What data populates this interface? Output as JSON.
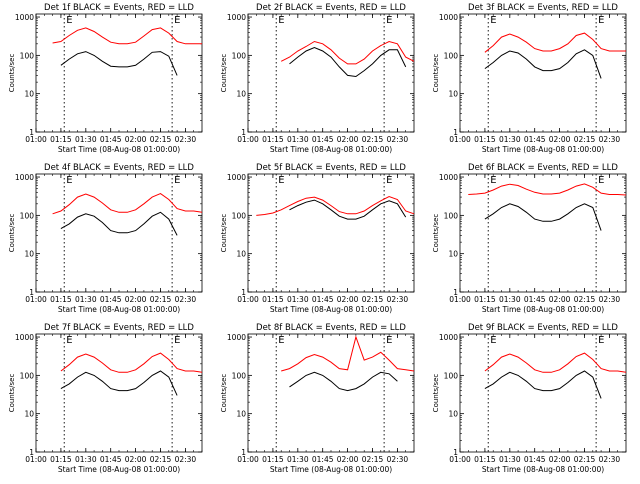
{
  "figure": {
    "xlabel": "Start Time (08-Aug-08 01:00:00)",
    "ylabel": "Counts/sec",
    "x_ticks": [
      "01:00",
      "01:15",
      "01:30",
      "01:45",
      "02:00",
      "02:15",
      "02:30"
    ],
    "y_ticks": [
      "1",
      "10",
      "100",
      "1000"
    ],
    "event_markers": [
      "E",
      "E"
    ],
    "colors": {
      "events": "#000000",
      "lld": "#ff0000",
      "axes": "#000000"
    }
  },
  "chart_data": [
    {
      "type": "line",
      "title": "Det 1f BLACK = Events, RED = LLD",
      "ylabel": "Counts/sec",
      "xlabel": "Start Time (08-Aug-08 01:00:00)",
      "x": [
        "01:00",
        "01:05",
        "01:10",
        "01:15",
        "01:20",
        "01:25",
        "01:30",
        "01:35",
        "01:40",
        "01:45",
        "01:50",
        "01:55",
        "02:00",
        "02:05",
        "02:10",
        "02:15",
        "02:20",
        "02:25",
        "02:30",
        "02:35",
        "02:40"
      ],
      "series": [
        {
          "name": "Events",
          "color": "#000000",
          "values": [
            null,
            null,
            null,
            55,
            80,
            110,
            125,
            100,
            70,
            52,
            50,
            50,
            55,
            80,
            120,
            125,
            95,
            30,
            null,
            null,
            null
          ]
        },
        {
          "name": "LLD",
          "color": "#ff0000",
          "values": [
            null,
            null,
            210,
            230,
            330,
            450,
            520,
            420,
            300,
            220,
            200,
            200,
            220,
            320,
            470,
            520,
            380,
            230,
            200,
            200,
            200
          ]
        }
      ],
      "xlim": [
        "01:00",
        "02:40"
      ],
      "ylim": [
        1,
        1200
      ],
      "yscale": "log",
      "vlines": [
        "01:17",
        "02:22"
      ]
    },
    {
      "type": "line",
      "title": "Det 2f BLACK = Events, RED = LLD",
      "ylabel": "Counts/sec",
      "xlabel": "Start Time (08-Aug-08 01:00:00)",
      "x": [
        "01:00",
        "01:05",
        "01:10",
        "01:15",
        "01:20",
        "01:25",
        "01:30",
        "01:35",
        "01:40",
        "01:45",
        "01:50",
        "01:55",
        "02:00",
        "02:05",
        "02:10",
        "02:15",
        "02:20",
        "02:25",
        "02:30",
        "02:35",
        "02:40"
      ],
      "series": [
        {
          "name": "Events",
          "color": "#000000",
          "values": [
            null,
            null,
            null,
            null,
            null,
            60,
            90,
            130,
            160,
            130,
            90,
            50,
            30,
            28,
            40,
            60,
            100,
            140,
            140,
            50,
            null
          ]
        },
        {
          "name": "LLD",
          "color": "#ff0000",
          "values": [
            null,
            null,
            null,
            null,
            70,
            90,
            130,
            170,
            230,
            200,
            140,
            85,
            60,
            60,
            80,
            130,
            180,
            230,
            200,
            90,
            70
          ]
        }
      ],
      "xlim": [
        "01:00",
        "02:40"
      ],
      "ylim": [
        1,
        1200
      ],
      "yscale": "log",
      "vlines": [
        "01:17",
        "02:22"
      ]
    },
    {
      "type": "line",
      "title": "Det 3f BLACK = Events, RED = LLD",
      "ylabel": "Counts/sec",
      "xlabel": "Start Time (08-Aug-08 01:00:00)",
      "x": [
        "01:00",
        "01:05",
        "01:10",
        "01:15",
        "01:20",
        "01:25",
        "01:30",
        "01:35",
        "01:40",
        "01:45",
        "01:50",
        "01:55",
        "02:00",
        "02:05",
        "02:10",
        "02:15",
        "02:20",
        "02:25",
        "02:30",
        "02:35",
        "02:40"
      ],
      "series": [
        {
          "name": "Events",
          "color": "#000000",
          "values": [
            null,
            null,
            null,
            45,
            65,
            100,
            130,
            115,
            80,
            50,
            40,
            40,
            45,
            65,
            110,
            140,
            100,
            25,
            null,
            null,
            null
          ]
        },
        {
          "name": "LLD",
          "color": "#ff0000",
          "values": [
            null,
            null,
            null,
            120,
            180,
            300,
            360,
            300,
            220,
            150,
            130,
            130,
            150,
            200,
            330,
            380,
            260,
            150,
            130,
            130,
            130
          ]
        }
      ],
      "xlim": [
        "01:00",
        "02:40"
      ],
      "ylim": [
        1,
        1200
      ],
      "yscale": "log",
      "vlines": [
        "01:17",
        "02:22"
      ]
    },
    {
      "type": "line",
      "title": "Det 4f BLACK = Events, RED = LLD",
      "ylabel": "Counts/sec",
      "xlabel": "Start Time (08-Aug-08 01:00:00)",
      "x": [
        "01:00",
        "01:05",
        "01:10",
        "01:15",
        "01:20",
        "01:25",
        "01:30",
        "01:35",
        "01:40",
        "01:45",
        "01:50",
        "01:55",
        "02:00",
        "02:05",
        "02:10",
        "02:15",
        "02:20",
        "02:25",
        "02:30",
        "02:35",
        "02:40"
      ],
      "series": [
        {
          "name": "Events",
          "color": "#000000",
          "values": [
            null,
            null,
            null,
            45,
            60,
            90,
            110,
            95,
            65,
            40,
            35,
            35,
            40,
            60,
            95,
            120,
            80,
            30,
            null,
            null,
            null
          ]
        },
        {
          "name": "LLD",
          "color": "#ff0000",
          "values": [
            null,
            null,
            110,
            130,
            190,
            300,
            360,
            300,
            210,
            140,
            120,
            120,
            140,
            200,
            300,
            370,
            260,
            150,
            130,
            130,
            120
          ]
        }
      ],
      "xlim": [
        "01:00",
        "02:40"
      ],
      "ylim": [
        1,
        1200
      ],
      "yscale": "log",
      "vlines": [
        "01:17",
        "02:22"
      ]
    },
    {
      "type": "line",
      "title": "Det 5f BLACK = Events, RED = LLD",
      "ylabel": "Counts/sec",
      "xlabel": "Start Time (08-Aug-08 01:00:00)",
      "x": [
        "01:00",
        "01:05",
        "01:10",
        "01:15",
        "01:20",
        "01:25",
        "01:30",
        "01:35",
        "01:40",
        "01:45",
        "01:50",
        "01:55",
        "02:00",
        "02:05",
        "02:10",
        "02:15",
        "02:20",
        "02:25",
        "02:30",
        "02:35",
        "02:40"
      ],
      "series": [
        {
          "name": "Events",
          "color": "#000000",
          "values": [
            null,
            null,
            null,
            null,
            null,
            140,
            180,
            220,
            250,
            200,
            140,
            95,
            80,
            80,
            95,
            140,
            200,
            240,
            200,
            90,
            null
          ]
        },
        {
          "name": "LLD",
          "color": "#ff0000",
          "values": [
            null,
            100,
            105,
            115,
            140,
            180,
            230,
            280,
            300,
            250,
            180,
            125,
            110,
            110,
            130,
            180,
            240,
            310,
            260,
            130,
            110
          ]
        }
      ],
      "xlim": [
        "01:00",
        "02:40"
      ],
      "ylim": [
        1,
        1200
      ],
      "yscale": "log",
      "vlines": [
        "01:17",
        "02:22"
      ]
    },
    {
      "type": "line",
      "title": "Det 6f BLACK = Events, RED = LLD",
      "ylabel": "Counts/sec",
      "xlabel": "Start Time (08-Aug-08 01:00:00)",
      "x": [
        "01:00",
        "01:05",
        "01:10",
        "01:15",
        "01:20",
        "01:25",
        "01:30",
        "01:35",
        "01:40",
        "01:45",
        "01:50",
        "01:55",
        "02:00",
        "02:05",
        "02:10",
        "02:15",
        "02:20",
        "02:25",
        "02:30",
        "02:35",
        "02:40"
      ],
      "series": [
        {
          "name": "Events",
          "color": "#000000",
          "values": [
            null,
            null,
            null,
            80,
            110,
            160,
            200,
            170,
            120,
            80,
            70,
            70,
            80,
            110,
            160,
            200,
            160,
            40,
            null,
            null,
            null
          ]
        },
        {
          "name": "LLD",
          "color": "#ff0000",
          "values": [
            null,
            350,
            360,
            380,
            460,
            580,
            650,
            600,
            480,
            400,
            360,
            360,
            380,
            460,
            580,
            660,
            540,
            380,
            350,
            350,
            340
          ]
        }
      ],
      "xlim": [
        "01:00",
        "02:40"
      ],
      "ylim": [
        1,
        1200
      ],
      "yscale": "log",
      "vlines": [
        "01:17",
        "02:22"
      ]
    },
    {
      "type": "line",
      "title": "Det 7f BLACK = Events, RED = LLD",
      "ylabel": "Counts/sec",
      "xlabel": "Start Time (08-Aug-08 01:00:00)",
      "x": [
        "01:00",
        "01:05",
        "01:10",
        "01:15",
        "01:20",
        "01:25",
        "01:30",
        "01:35",
        "01:40",
        "01:45",
        "01:50",
        "01:55",
        "02:00",
        "02:05",
        "02:10",
        "02:15",
        "02:20",
        "02:25",
        "02:30",
        "02:35",
        "02:40"
      ],
      "series": [
        {
          "name": "Events",
          "color": "#000000",
          "values": [
            null,
            null,
            null,
            45,
            60,
            90,
            120,
            100,
            70,
            45,
            40,
            40,
            45,
            65,
            100,
            130,
            90,
            30,
            null,
            null,
            null
          ]
        },
        {
          "name": "LLD",
          "color": "#ff0000",
          "values": [
            null,
            null,
            null,
            130,
            190,
            300,
            360,
            300,
            210,
            140,
            120,
            120,
            140,
            200,
            310,
            380,
            260,
            150,
            130,
            130,
            120
          ]
        }
      ],
      "xlim": [
        "01:00",
        "02:40"
      ],
      "ylim": [
        1,
        1200
      ],
      "yscale": "log",
      "vlines": [
        "01:17",
        "02:22"
      ]
    },
    {
      "type": "line",
      "title": "Det 8f BLACK = Events, RED = LLD",
      "ylabel": "Counts/sec",
      "xlabel": "Start Time (08-Aug-08 01:00:00)",
      "x": [
        "01:00",
        "01:05",
        "01:10",
        "01:15",
        "01:20",
        "01:25",
        "01:30",
        "01:35",
        "01:40",
        "01:45",
        "01:50",
        "01:55",
        "02:00",
        "02:05",
        "02:10",
        "02:15",
        "02:20",
        "02:25",
        "02:30",
        "02:35",
        "02:40"
      ],
      "series": [
        {
          "name": "Events",
          "color": "#000000",
          "values": [
            null,
            null,
            null,
            null,
            null,
            50,
            70,
            100,
            120,
            100,
            70,
            45,
            40,
            45,
            60,
            90,
            120,
            110,
            70,
            null,
            null
          ]
        },
        {
          "name": "LLD",
          "color": "#ff0000",
          "values": [
            null,
            null,
            null,
            null,
            130,
            150,
            200,
            290,
            350,
            300,
            220,
            150,
            140,
            1000,
            250,
            300,
            400,
            250,
            150,
            140,
            130
          ]
        }
      ],
      "xlim": [
        "01:00",
        "02:40"
      ],
      "ylim": [
        1,
        1200
      ],
      "yscale": "log",
      "vlines": [
        "01:17",
        "02:22"
      ]
    },
    {
      "type": "line",
      "title": "Det 9f BLACK = Events, RED = LLD",
      "ylabel": "Counts/sec",
      "xlabel": "Start Time (08-Aug-08 01:00:00)",
      "x": [
        "01:00",
        "01:05",
        "01:10",
        "01:15",
        "01:20",
        "01:25",
        "01:30",
        "01:35",
        "01:40",
        "01:45",
        "01:50",
        "01:55",
        "02:00",
        "02:05",
        "02:10",
        "02:15",
        "02:20",
        "02:25",
        "02:30",
        "02:35",
        "02:40"
      ],
      "series": [
        {
          "name": "Events",
          "color": "#000000",
          "values": [
            null,
            null,
            null,
            45,
            60,
            90,
            120,
            100,
            70,
            45,
            40,
            40,
            45,
            65,
            100,
            130,
            90,
            25,
            null,
            null,
            null
          ]
        },
        {
          "name": "LLD",
          "color": "#ff0000",
          "values": [
            null,
            null,
            null,
            130,
            190,
            300,
            360,
            300,
            210,
            140,
            120,
            120,
            140,
            200,
            310,
            380,
            260,
            150,
            130,
            130,
            120
          ]
        }
      ],
      "xlim": [
        "01:00",
        "02:40"
      ],
      "ylim": [
        1,
        1200
      ],
      "yscale": "log",
      "vlines": [
        "01:17",
        "02:22"
      ]
    }
  ]
}
